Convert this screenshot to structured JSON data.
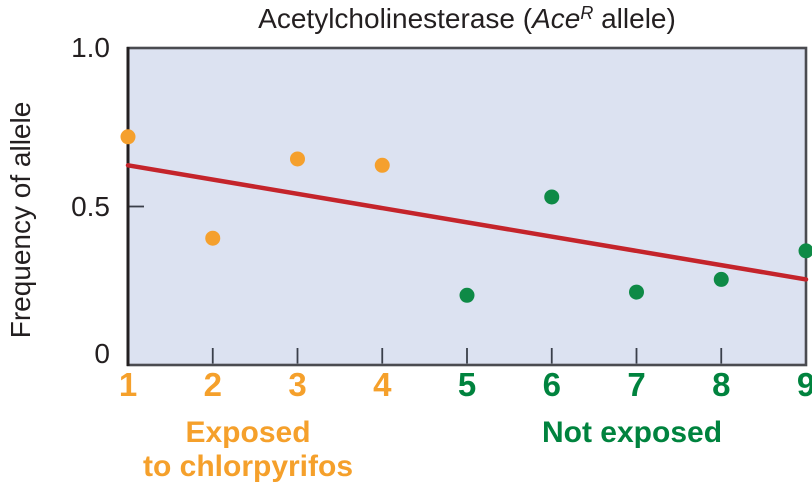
{
  "title": {
    "prefix": "Acetylcholinesterase (",
    "gene": "Ace",
    "gene_superscript": "R",
    "suffix": " allele)"
  },
  "groups": {
    "exposed": {
      "label_line1": "Exposed",
      "label_line2": "to chlorpyrifos"
    },
    "not_exposed": {
      "label": "Not exposed"
    }
  },
  "colors": {
    "exposed_point": "#F5A02D",
    "exposed_text": "#F5A02B",
    "not_exposed_point": "#0E8A46",
    "not_exposed_text": "#00833E",
    "trend_line": "#C4242B",
    "plot_background": "#DCE2F1",
    "plot_border": "#4A4B50",
    "axis": "#231F20",
    "tick": "#3A3F4A",
    "text": "#231F20"
  },
  "chart_data": {
    "type": "scatter",
    "title": "Acetylcholinesterase (AceR allele)",
    "ylabel": "Frequency of allele",
    "xlim": [
      1,
      9
    ],
    "ylim": [
      0,
      1
    ],
    "grid": false,
    "y_ticks": [
      {
        "label": "1.0",
        "value": 1.0
      },
      {
        "label": "0.5",
        "value": 0.5
      },
      {
        "label": "0",
        "value": 0.0
      }
    ],
    "x_ticks": [
      {
        "label": "1",
        "value": 1,
        "group": "exposed"
      },
      {
        "label": "2",
        "value": 2,
        "group": "exposed"
      },
      {
        "label": "3",
        "value": 3,
        "group": "exposed"
      },
      {
        "label": "4",
        "value": 4,
        "group": "exposed"
      },
      {
        "label": "5",
        "value": 5,
        "group": "not_exposed"
      },
      {
        "label": "6",
        "value": 6,
        "group": "not_exposed"
      },
      {
        "label": "7",
        "value": 7,
        "group": "not_exposed"
      },
      {
        "label": "8",
        "value": 8,
        "group": "not_exposed"
      },
      {
        "label": "9",
        "value": 9,
        "group": "not_exposed"
      }
    ],
    "x_inner_tick_values": [
      2,
      3,
      4,
      5,
      6,
      7,
      8
    ],
    "y_inner_tick_values": [
      0.5
    ],
    "series": [
      {
        "name": "Exposed to chlorpyrifos",
        "key": "exposed",
        "color_key": "exposed_point",
        "points": [
          {
            "x": 1,
            "y": 0.72
          },
          {
            "x": 2,
            "y": 0.4
          },
          {
            "x": 3,
            "y": 0.65
          },
          {
            "x": 4,
            "y": 0.63
          },
          {
            "x": 5,
            "y": 0.22
          },
          {
            "x": 6,
            "y": 0.53
          },
          {
            "x": 7,
            "y": 0.23
          },
          {
            "x": 8,
            "y": 0.27
          },
          {
            "x": 9,
            "y": 0.36
          }
        ]
      }
    ],
    "series_groups": [
      {
        "key": "exposed",
        "name": "Exposed to chlorpyrifos",
        "x_values": [
          1,
          2,
          3,
          4
        ]
      },
      {
        "key": "not_exposed",
        "name": "Not exposed",
        "x_values": [
          5,
          6,
          7,
          8,
          9
        ]
      }
    ],
    "trend_line": {
      "x1": 1,
      "y1": 0.63,
      "x2": 9,
      "y2": 0.27
    }
  }
}
